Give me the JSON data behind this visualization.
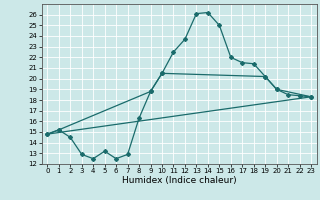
{
  "title": "",
  "xlabel": "Humidex (Indice chaleur)",
  "background_color": "#cce8e8",
  "line_color": "#1a6b6b",
  "xlim": [
    -0.5,
    23.5
  ],
  "ylim": [
    12,
    27
  ],
  "yticks": [
    12,
    13,
    14,
    15,
    16,
    17,
    18,
    19,
    20,
    21,
    22,
    23,
    24,
    25,
    26
  ],
  "xticks": [
    0,
    1,
    2,
    3,
    4,
    5,
    6,
    7,
    8,
    9,
    10,
    11,
    12,
    13,
    14,
    15,
    16,
    17,
    18,
    19,
    20,
    21,
    22,
    23
  ],
  "line1_x": [
    0,
    1,
    2,
    3,
    4,
    5,
    6,
    7,
    8,
    9,
    10,
    11,
    12,
    13,
    14,
    15,
    16,
    17,
    18,
    19,
    20,
    21,
    22,
    23
  ],
  "line1_y": [
    14.8,
    15.2,
    14.5,
    12.9,
    12.5,
    13.2,
    12.5,
    12.9,
    16.3,
    18.8,
    20.5,
    22.5,
    23.7,
    26.1,
    26.2,
    25.0,
    22.0,
    21.5,
    21.4,
    20.2,
    19.0,
    18.5,
    18.4,
    18.3
  ],
  "line2_x": [
    0,
    1,
    9,
    10,
    19,
    20,
    23
  ],
  "line2_y": [
    14.8,
    15.2,
    18.8,
    20.5,
    20.2,
    19.0,
    18.3
  ],
  "line3_x": [
    0,
    23
  ],
  "line3_y": [
    14.8,
    18.3
  ]
}
